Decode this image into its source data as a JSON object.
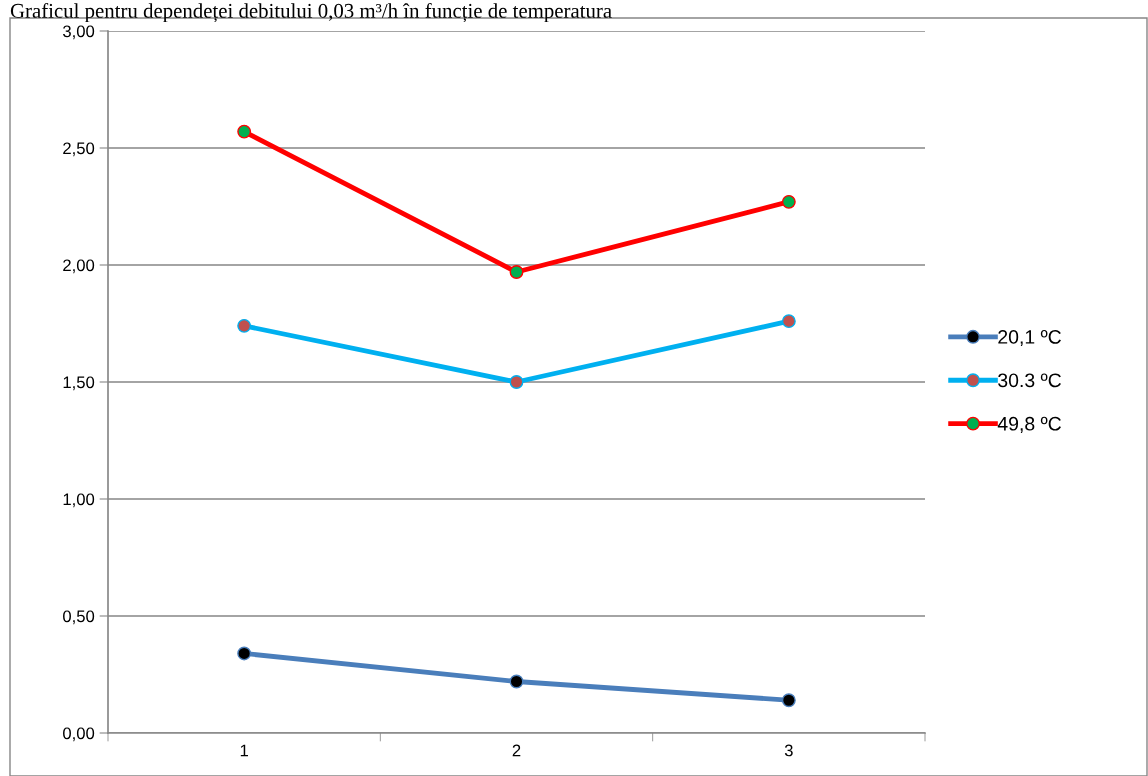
{
  "chart_data": {
    "type": "line",
    "title": "Graficul pentru dependeței debitului 0,03 m³/h în funcție de temperatura",
    "categories": [
      "1",
      "2",
      "3"
    ],
    "series": [
      {
        "name": "20,1 ºC",
        "color": "#4a7ebb",
        "colors": [
          "#000000",
          "#000000",
          "#000000"
        ],
        "values": [
          0.34,
          0.22,
          0.14
        ]
      },
      {
        "name": "30.3 ºC",
        "color": "#00b0f0",
        "colors": [
          "#c0504d",
          "#c0504d",
          "#c0504d"
        ],
        "values": [
          1.74,
          1.5,
          1.76
        ]
      },
      {
        "name": "49,8 ºC",
        "color": "#ff0000",
        "colors": [
          "#00b050",
          "#00b050",
          "#00b050"
        ],
        "values": [
          2.57,
          1.97,
          2.27
        ]
      }
    ],
    "ylim": [
      0,
      3
    ],
    "yticks": [
      {
        "value": 0,
        "label": "0,00"
      },
      {
        "value": 0.5,
        "label": "0,50"
      },
      {
        "value": 1,
        "label": "1,00"
      },
      {
        "value": 1.5,
        "label": "1,50"
      },
      {
        "value": 2,
        "label": "2,00"
      },
      {
        "value": 2.5,
        "label": "2,50"
      },
      {
        "value": 3,
        "label": "3,00"
      }
    ],
    "grid": "y",
    "legend": "right",
    "marker": "circle",
    "line_style": "solid"
  }
}
